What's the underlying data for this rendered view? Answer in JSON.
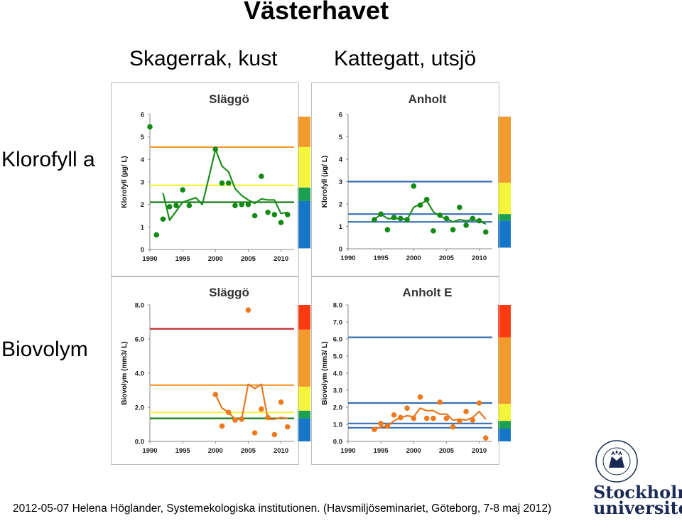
{
  "header": {
    "title": "Västerhavet",
    "col1": "Skagerrak, kust",
    "col2": "Kattegatt, utsjö"
  },
  "rows": {
    "row1": "Klorofyll a",
    "row2": "Biovolym"
  },
  "footer": "2012-05-07 Helena Höglander, Systemekologiska institutionen. (Havsmiljöseminariet, Göteborg, 7-8 maj 2012)",
  "logo": {
    "line1": "Stockholms",
    "line2": "universitet",
    "seal_text": "UNIVERSITET STOCKHOLMS"
  },
  "colors": {
    "chl_line": "#1e8c1e",
    "chl_points": "#138a13",
    "bio_line": "#e87722",
    "bio_points": "#ee7a20",
    "ref_orange": "#f29a2e",
    "ref_yellow": "#f5f53c",
    "ref_green": "#1e7a1e",
    "ref_blue": "#3a6fb0",
    "ref_red": "#c0282a"
  },
  "chart_data": [
    {
      "type": "line",
      "title": "Släggö",
      "ylabel": "Klorofyll (µg/ L)",
      "xlim": [
        1990,
        2012
      ],
      "ylim": [
        0,
        6
      ],
      "xticks": [
        "1990",
        "1995",
        "2000",
        "2005",
        "2010"
      ],
      "yticks": [
        "0",
        "1",
        "2",
        "3",
        "4",
        "5",
        "6"
      ],
      "scatter": {
        "x": [
          1990,
          1991,
          1992,
          1993,
          1994,
          1995,
          1996,
          2000,
          2001,
          2002,
          2003,
          2004,
          2005,
          2006,
          2007,
          2008,
          2009,
          2010,
          2011
        ],
        "y": [
          5.45,
          0.65,
          1.35,
          1.9,
          1.95,
          2.65,
          1.95,
          4.45,
          2.95,
          2.95,
          1.95,
          2.0,
          2.0,
          1.5,
          3.25,
          1.65,
          1.55,
          1.2,
          1.55
        ]
      },
      "line": {
        "x": [
          1992,
          1993,
          1994,
          1995,
          1996,
          1997,
          1998,
          1999,
          2000,
          2001,
          2002,
          2003,
          2004,
          2005,
          2006,
          2007,
          2008,
          2009,
          2010,
          2011
        ],
        "y": [
          2.5,
          1.3,
          1.7,
          2.1,
          2.2,
          2.3,
          2.0,
          3.2,
          4.45,
          3.7,
          3.45,
          2.7,
          2.4,
          2.2,
          2.05,
          2.25,
          2.2,
          2.2,
          1.6,
          1.65
        ]
      },
      "hlines": [
        {
          "y": 4.55,
          "color": "#f29a2e"
        },
        {
          "y": 2.85,
          "color": "#f5f53c"
        },
        {
          "y": 2.1,
          "color": "#1e7a1e"
        }
      ],
      "colorbar": [
        {
          "color": "#f29a2e",
          "from": 4.55,
          "to": 5.9
        },
        {
          "color": "#f5f53c",
          "from": 2.75,
          "to": 4.55
        },
        {
          "color": "#1aa050",
          "from": 2.15,
          "to": 2.75
        },
        {
          "color": "#1677c8",
          "from": 0.05,
          "to": 2.15
        }
      ]
    },
    {
      "type": "line",
      "title": "Anholt",
      "ylabel": "Klorofyll (µg/ L)",
      "xlim": [
        1990,
        2012
      ],
      "ylim": [
        0,
        6
      ],
      "xticks": [
        "1990",
        "1995",
        "2000",
        "2005",
        "2010"
      ],
      "yticks": [
        "0",
        "1",
        "2",
        "3",
        "4",
        "5",
        "6"
      ],
      "scatter": {
        "x": [
          1994,
          1995,
          1996,
          1997,
          1998,
          1999,
          2000,
          2001,
          2002,
          2003,
          2004,
          2005,
          2006,
          2007,
          2008,
          2009,
          2010,
          2011
        ],
        "y": [
          1.3,
          1.55,
          0.85,
          1.4,
          1.35,
          1.3,
          2.8,
          1.95,
          2.2,
          0.8,
          1.5,
          1.35,
          0.85,
          1.85,
          1.05,
          1.35,
          1.25,
          0.75
        ]
      },
      "line": {
        "x": [
          1994,
          1995,
          1996,
          1997,
          1998,
          1999,
          2000,
          2001,
          2002,
          2003,
          2004,
          2005,
          2006,
          2007,
          2008,
          2009,
          2010,
          2011
        ],
        "y": [
          1.3,
          1.55,
          1.35,
          1.35,
          1.35,
          1.3,
          1.85,
          2.0,
          2.15,
          1.65,
          1.45,
          1.35,
          1.2,
          1.3,
          1.25,
          1.3,
          1.25,
          1.1
        ]
      },
      "hlines": [
        {
          "y": 3.0,
          "color": "#3a6fb0"
        },
        {
          "y": 1.55,
          "color": "#3a6fb0"
        },
        {
          "y": 1.2,
          "color": "#3a6fb0"
        }
      ],
      "colorbar": [
        {
          "color": "#f29a2e",
          "from": 2.95,
          "to": 5.9
        },
        {
          "color": "#f5f53c",
          "from": 1.55,
          "to": 2.95
        },
        {
          "color": "#1aa050",
          "from": 1.25,
          "to": 1.55
        },
        {
          "color": "#1677c8",
          "from": 0.05,
          "to": 1.25
        }
      ]
    },
    {
      "type": "line",
      "title": "Släggö",
      "ylabel": "Biovolym (mm3/ L)",
      "xlim": [
        1990,
        2012
      ],
      "ylim": [
        0,
        8
      ],
      "xticks": [
        "1990",
        "1995",
        "2000",
        "2005",
        "2010"
      ],
      "yticks": [
        "0.0",
        "2.0",
        "4.0",
        "6.0",
        "8.0"
      ],
      "scatter": {
        "x": [
          2000,
          2001,
          2002,
          2003,
          2004,
          2005,
          2006,
          2007,
          2008,
          2009,
          2010,
          2011
        ],
        "y": [
          2.75,
          0.9,
          1.7,
          1.25,
          1.3,
          7.7,
          0.5,
          1.9,
          1.4,
          0.4,
          2.3,
          0.85
        ]
      },
      "line": {
        "x": [
          2000,
          2001,
          2002,
          2003,
          2004,
          2005,
          2006,
          2007,
          2008,
          2009,
          2010,
          2011
        ],
        "y": [
          2.75,
          1.95,
          1.7,
          1.3,
          1.3,
          3.35,
          3.1,
          3.35,
          1.3,
          1.3,
          1.4,
          1.35
        ]
      },
      "hlines": [
        {
          "y": 6.6,
          "color": "#c0282a"
        },
        {
          "y": 3.3,
          "color": "#f29a2e"
        },
        {
          "y": 1.7,
          "color": "#f5f53c"
        },
        {
          "y": 1.35,
          "color": "#1e7a1e"
        }
      ],
      "colorbar": [
        {
          "color": "#ff3a10",
          "from": 6.55,
          "to": 8.0
        },
        {
          "color": "#f29a2e",
          "from": 3.2,
          "to": 6.55
        },
        {
          "color": "#f5f53c",
          "from": 1.8,
          "to": 3.2
        },
        {
          "color": "#1aa050",
          "from": 1.35,
          "to": 1.8
        },
        {
          "color": "#1677c8",
          "from": 0.0,
          "to": 1.35
        }
      ]
    },
    {
      "type": "line",
      "title": "Anholt E",
      "ylabel": "Biovolym (mm3/ L)",
      "xlim": [
        1990,
        2012
      ],
      "ylim": [
        0,
        8
      ],
      "xticks": [
        "1990",
        "1995",
        "2000",
        "2005",
        "2010"
      ],
      "yticks": [
        "0.0",
        "1.0",
        "2.0",
        "3.0",
        "4.0",
        "5.0",
        "6.0",
        "7.0",
        "8.0"
      ],
      "scatter": {
        "x": [
          1994,
          1995,
          1996,
          1997,
          1998,
          1999,
          2000,
          2001,
          2002,
          2003,
          2004,
          2005,
          2006,
          2007,
          2008,
          2009,
          2010,
          2011
        ],
        "y": [
          0.7,
          1.05,
          0.9,
          1.55,
          1.4,
          1.95,
          1.35,
          2.6,
          1.35,
          1.35,
          2.3,
          1.35,
          0.85,
          1.2,
          1.75,
          1.25,
          2.25,
          0.2
        ]
      },
      "line": {
        "x": [
          1994,
          1995,
          1996,
          1997,
          1998,
          1999,
          2000,
          2001,
          2002,
          2003,
          2004,
          2005,
          2006,
          2007,
          2008,
          2009,
          2010,
          2011
        ],
        "y": [
          0.7,
          0.85,
          0.9,
          1.2,
          1.4,
          1.5,
          1.45,
          1.95,
          1.8,
          1.8,
          1.6,
          1.6,
          1.25,
          1.3,
          1.25,
          1.4,
          1.75,
          1.3
        ]
      },
      "hlines": [
        {
          "y": 6.1,
          "color": "#3a6fb0"
        },
        {
          "y": 2.25,
          "color": "#3a6fb0"
        },
        {
          "y": 1.05,
          "color": "#3a6fb0"
        },
        {
          "y": 0.8,
          "color": "#3a6fb0"
        }
      ],
      "colorbar": [
        {
          "color": "#ff3a10",
          "from": 6.1,
          "to": 8.0
        },
        {
          "color": "#f29a2e",
          "from": 2.2,
          "to": 6.1
        },
        {
          "color": "#f5f53c",
          "from": 1.2,
          "to": 2.2
        },
        {
          "color": "#1aa050",
          "from": 0.75,
          "to": 1.2
        },
        {
          "color": "#1677c8",
          "from": 0.0,
          "to": 0.75
        }
      ]
    }
  ]
}
